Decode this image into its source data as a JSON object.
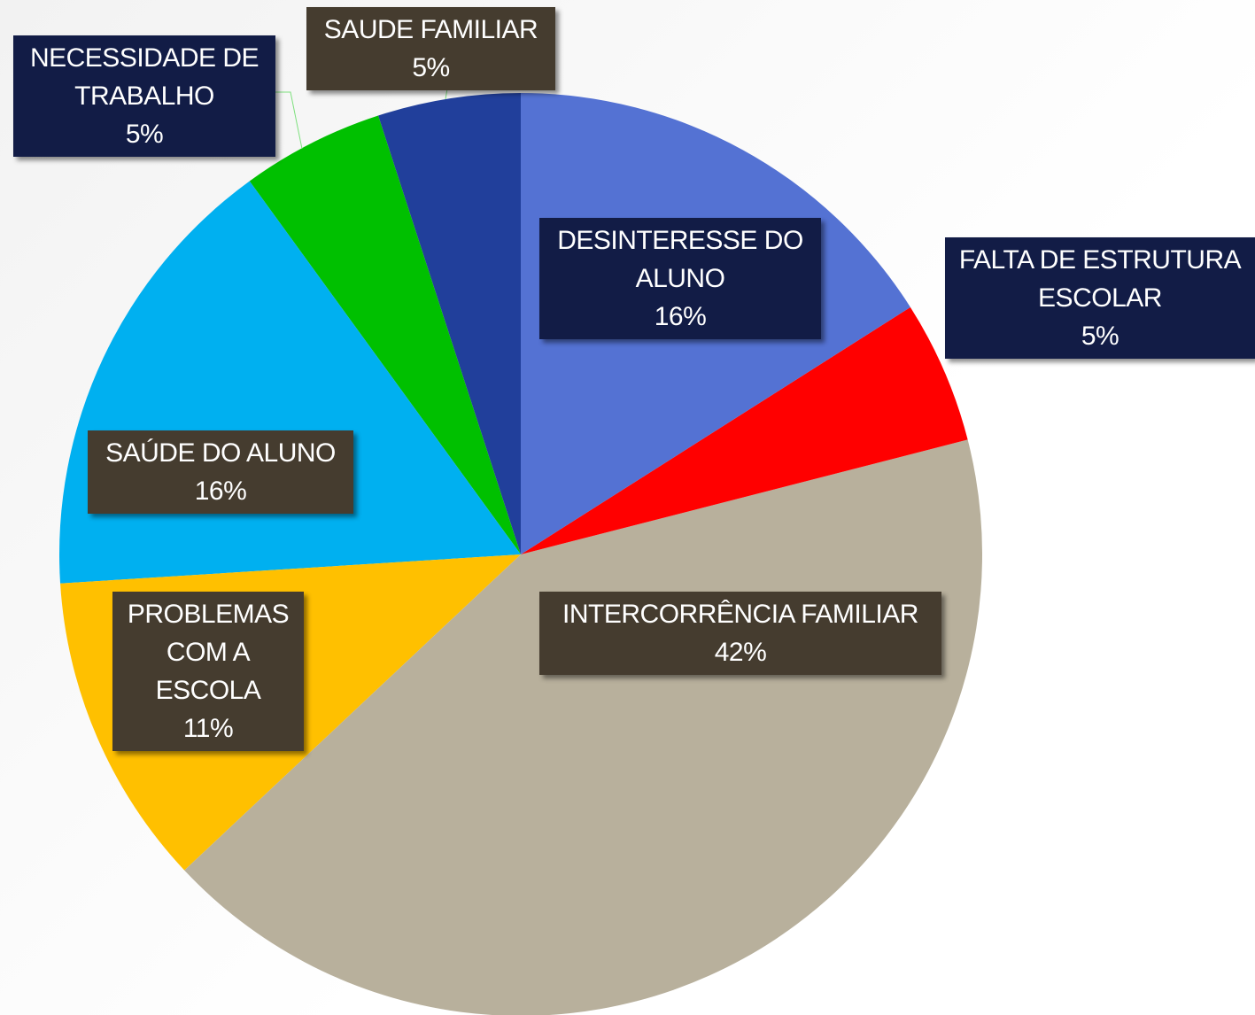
{
  "chart_data": {
    "type": "pie",
    "categories": [
      "DESINTERESSE DO ALUNO",
      "FALTA DE ESTRUTURA ESCOLAR",
      "INTERCORRÊNCIA FAMILIAR",
      "PROBLEMAS COM A ESCOLA",
      "SAÚDE DO ALUNO",
      "NECESSIDADE DE TRABALHO",
      "SAUDE FAMILIAR"
    ],
    "values": [
      16,
      5,
      42,
      11,
      16,
      5,
      5
    ],
    "value_labels": [
      "16%",
      "5%",
      "42%",
      "11%",
      "16%",
      "5%",
      "5%"
    ],
    "colors": [
      "#5472d3",
      "#ff0000",
      "#b8b09c",
      "#ffc000",
      "#00b0f0",
      "#00c000",
      "#213f9b"
    ],
    "label_box_colors": [
      "#121c46",
      "#121c46",
      "#453c2f",
      "#453c2f",
      "#453c2f",
      "#121c46",
      "#453c2f"
    ]
  }
}
